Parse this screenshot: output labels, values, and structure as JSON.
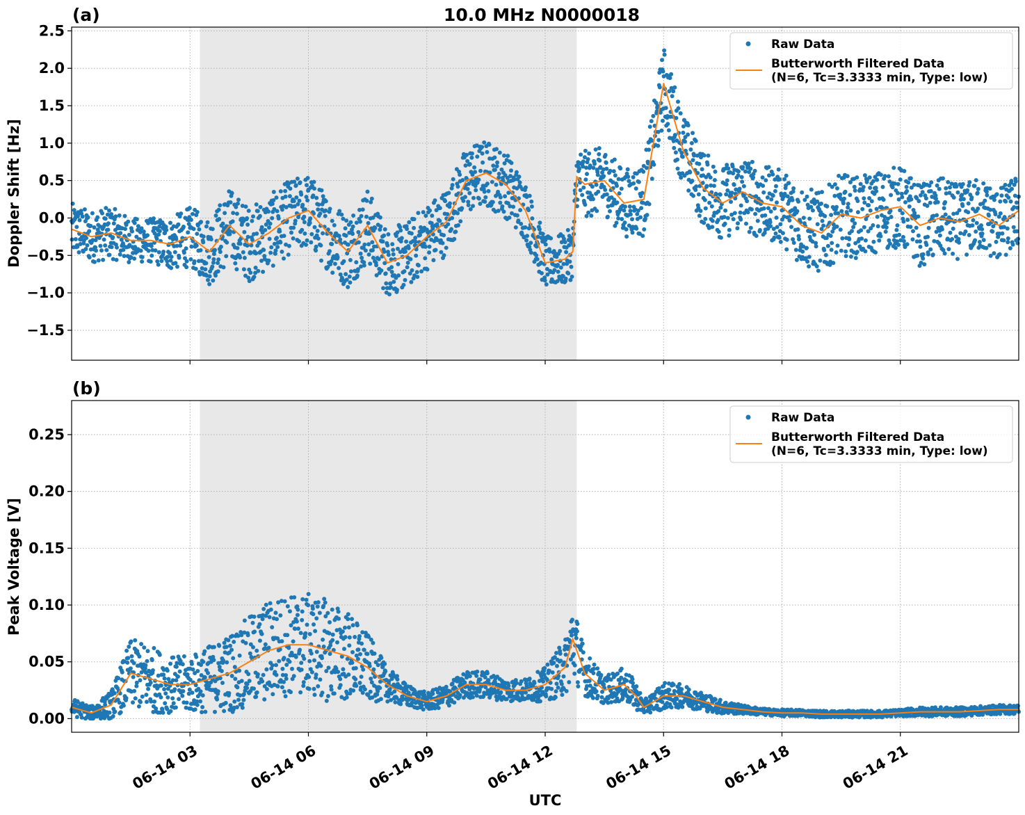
{
  "figure": {
    "title": "10.0 MHz N0000018",
    "xlabel": "UTC",
    "x_tick_labels": [
      "06-14 03",
      "06-14 06",
      "06-14 09",
      "06-14 12",
      "06-14 15",
      "06-14 18",
      "06-14 21"
    ],
    "x_tick_hours": [
      3,
      6,
      9,
      12,
      15,
      18,
      21
    ],
    "x_range_hours": [
      0,
      24
    ],
    "shaded_interval_hours": [
      3.25,
      12.8
    ]
  },
  "colors": {
    "raw": "#1f77b4",
    "filtered": "#ff7f0e",
    "shade": "#e8e8e8"
  },
  "legend": {
    "raw_label": "Raw Data",
    "filtered_label_line1": "Butterworth Filtered Data",
    "filtered_label_line2": "(N=6, Tc=3.3333 min, Type: low)",
    "placement": "top-right"
  },
  "chart_data": [
    {
      "type": "scatter",
      "panel_label": "(a)",
      "ylabel": "Doppler Shift [Hz]",
      "ylim": [
        -1.9,
        2.55
      ],
      "yticks": [
        -1.5,
        -1.0,
        -0.5,
        0.0,
        0.5,
        1.0,
        1.5,
        2.0,
        2.5
      ],
      "ytick_labels": [
        "−1.5",
        "−1.0",
        "−0.5",
        "0.0",
        "0.5",
        "1.0",
        "1.5",
        "2.0",
        "2.5"
      ],
      "grid": true,
      "series": [
        {
          "name": "Butterworth Filtered Data",
          "x_hours": [
            0,
            0.5,
            1,
            1.5,
            2,
            2.5,
            3,
            3.5,
            4,
            4.5,
            5,
            5.5,
            6,
            6.5,
            7,
            7.5,
            8,
            8.5,
            9,
            9.5,
            10,
            10.5,
            11,
            11.5,
            12,
            12.5,
            12.7,
            12.8,
            13,
            13.5,
            14,
            14.5,
            15,
            15.5,
            16,
            16.5,
            17,
            17.5,
            18,
            18.5,
            19,
            19.5,
            20,
            20.5,
            21,
            21.5,
            22,
            22.5,
            23,
            23.5,
            24
          ],
          "values": [
            -0.15,
            -0.25,
            -0.2,
            -0.3,
            -0.3,
            -0.35,
            -0.25,
            -0.45,
            -0.1,
            -0.35,
            -0.2,
            0.0,
            0.1,
            -0.2,
            -0.45,
            -0.1,
            -0.6,
            -0.5,
            -0.25,
            -0.05,
            0.5,
            0.6,
            0.45,
            0.1,
            -0.6,
            -0.55,
            -0.45,
            0.55,
            0.45,
            0.5,
            0.2,
            0.25,
            1.8,
            0.9,
            0.4,
            0.2,
            0.35,
            0.2,
            0.15,
            -0.1,
            -0.2,
            0.05,
            0.0,
            0.1,
            0.15,
            -0.1,
            0.0,
            -0.05,
            0.05,
            -0.1,
            0.1
          ]
        },
        {
          "name": "Raw Data",
          "x_hours": [
            0,
            0.5,
            1,
            1.5,
            2,
            2.5,
            3,
            3.5,
            4,
            4.5,
            5,
            5.5,
            6,
            6.5,
            7,
            7.5,
            8,
            8.5,
            9,
            9.5,
            10,
            10.5,
            11,
            11.5,
            12,
            12.5,
            12.7,
            12.8,
            13,
            13.5,
            14,
            14.5,
            15,
            15.5,
            16,
            16.5,
            17,
            17.5,
            18,
            18.5,
            19,
            19.5,
            20,
            20.5,
            21,
            21.5,
            22,
            22.5,
            23,
            23.5,
            24
          ],
          "values": [
            -0.15,
            -0.25,
            -0.2,
            -0.3,
            -0.3,
            -0.35,
            -0.25,
            -0.45,
            -0.1,
            -0.35,
            -0.2,
            0.0,
            0.1,
            -0.2,
            -0.45,
            -0.1,
            -0.6,
            -0.5,
            -0.25,
            -0.05,
            0.5,
            0.6,
            0.45,
            0.1,
            -0.6,
            -0.55,
            -0.45,
            0.55,
            0.45,
            0.5,
            0.2,
            0.25,
            1.8,
            0.9,
            0.4,
            0.2,
            0.35,
            0.2,
            0.15,
            -0.1,
            -0.2,
            0.05,
            0.0,
            0.1,
            0.15,
            -0.1,
            0.0,
            -0.05,
            0.05,
            -0.1,
            0.1
          ],
          "spread": [
            0.35,
            0.35,
            0.35,
            0.3,
            0.3,
            0.35,
            0.4,
            0.45,
            0.5,
            0.5,
            0.5,
            0.5,
            0.5,
            0.5,
            0.5,
            0.5,
            0.45,
            0.45,
            0.45,
            0.45,
            0.45,
            0.45,
            0.45,
            0.4,
            0.35,
            0.35,
            0.35,
            0.4,
            0.45,
            0.45,
            0.45,
            0.5,
            0.5,
            0.5,
            0.5,
            0.5,
            0.5,
            0.5,
            0.5,
            0.55,
            0.55,
            0.55,
            0.55,
            0.55,
            0.55,
            0.55,
            0.55,
            0.5,
            0.5,
            0.5,
            0.5
          ]
        }
      ]
    },
    {
      "type": "scatter",
      "panel_label": "(b)",
      "ylabel": "Peak Voltage [V]",
      "ylim": [
        -0.012,
        0.28
      ],
      "yticks": [
        0.0,
        0.05,
        0.1,
        0.15,
        0.2,
        0.25
      ],
      "ytick_labels": [
        "0.00",
        "0.05",
        "0.10",
        "0.15",
        "0.20",
        "0.25"
      ],
      "grid": true,
      "series": [
        {
          "name": "Butterworth Filtered Data",
          "x_hours": [
            0,
            0.5,
            1,
            1.5,
            2,
            2.5,
            3,
            3.5,
            4,
            4.5,
            5,
            5.5,
            6,
            6.5,
            7,
            7.5,
            8,
            8.5,
            9,
            9.5,
            10,
            10.5,
            11,
            11.5,
            12,
            12.5,
            12.7,
            13,
            13.5,
            14,
            14.3,
            14.5,
            15,
            15.5,
            16,
            16.5,
            17,
            17.5,
            18,
            18.5,
            19,
            19.5,
            20,
            20.5,
            21,
            21.5,
            22,
            22.5,
            23,
            23.5,
            24
          ],
          "values": [
            0.01,
            0.005,
            0.012,
            0.04,
            0.035,
            0.03,
            0.03,
            0.035,
            0.04,
            0.05,
            0.06,
            0.065,
            0.065,
            0.06,
            0.055,
            0.045,
            0.03,
            0.02,
            0.015,
            0.02,
            0.03,
            0.03,
            0.025,
            0.025,
            0.03,
            0.045,
            0.07,
            0.04,
            0.025,
            0.03,
            0.02,
            0.01,
            0.02,
            0.02,
            0.015,
            0.01,
            0.008,
            0.006,
            0.005,
            0.005,
            0.004,
            0.004,
            0.004,
            0.004,
            0.005,
            0.006,
            0.006,
            0.006,
            0.007,
            0.008,
            0.008
          ]
        },
        {
          "name": "Raw Data",
          "x_hours": [
            0,
            0.5,
            1,
            1.5,
            2,
            2.5,
            3,
            3.5,
            4,
            4.5,
            5,
            5.5,
            6,
            6.5,
            7,
            7.5,
            8,
            8.5,
            9,
            9.5,
            10,
            10.5,
            11,
            11.5,
            12,
            12.5,
            12.7,
            13,
            13.5,
            14,
            14.3,
            14.5,
            15,
            15.5,
            16,
            16.5,
            17,
            17.5,
            18,
            18.5,
            19,
            19.5,
            20,
            20.5,
            21,
            21.5,
            22,
            22.5,
            23,
            23.5,
            24
          ],
          "values": [
            0.01,
            0.005,
            0.012,
            0.04,
            0.035,
            0.03,
            0.03,
            0.035,
            0.04,
            0.05,
            0.06,
            0.065,
            0.065,
            0.06,
            0.055,
            0.045,
            0.03,
            0.02,
            0.015,
            0.02,
            0.03,
            0.03,
            0.025,
            0.025,
            0.03,
            0.045,
            0.07,
            0.04,
            0.025,
            0.03,
            0.02,
            0.01,
            0.02,
            0.02,
            0.015,
            0.01,
            0.008,
            0.006,
            0.005,
            0.005,
            0.004,
            0.004,
            0.004,
            0.004,
            0.005,
            0.006,
            0.006,
            0.006,
            0.007,
            0.008,
            0.008
          ],
          "spread": [
            0.008,
            0.006,
            0.012,
            0.03,
            0.03,
            0.025,
            0.025,
            0.03,
            0.035,
            0.04,
            0.045,
            0.045,
            0.045,
            0.045,
            0.04,
            0.03,
            0.015,
            0.01,
            0.008,
            0.01,
            0.012,
            0.012,
            0.01,
            0.01,
            0.015,
            0.025,
            0.035,
            0.02,
            0.012,
            0.015,
            0.012,
            0.006,
            0.012,
            0.01,
            0.008,
            0.006,
            0.004,
            0.003,
            0.003,
            0.003,
            0.003,
            0.003,
            0.003,
            0.003,
            0.003,
            0.004,
            0.004,
            0.004,
            0.004,
            0.004,
            0.004
          ]
        }
      ]
    }
  ]
}
